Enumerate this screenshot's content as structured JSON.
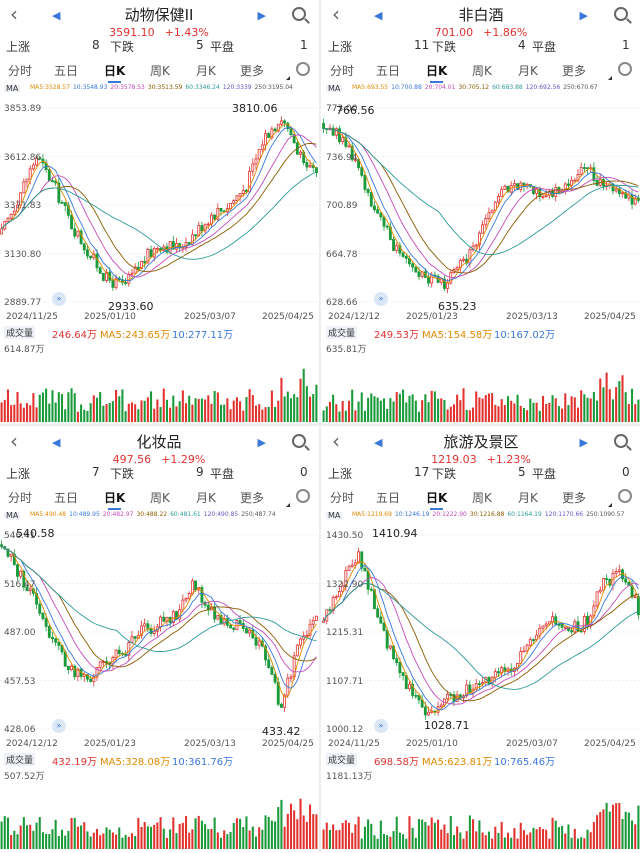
{
  "colors": {
    "up": "#e2332f",
    "down": "#1a9a3a",
    "accent": "#3a78d8"
  },
  "common": {
    "tabs": [
      "分时",
      "五日",
      "日K",
      "周K",
      "月K",
      "更多"
    ],
    "breadth_labels": {
      "up": "上涨",
      "down": "下跌",
      "flat": "平盘"
    },
    "ma_tag": "MA",
    "vol_tag": "成交量",
    "icons": [
      "back-icon",
      "prev-icon",
      "next-icon",
      "search-icon",
      "settings-icon",
      "drag-icon"
    ]
  },
  "panels": [
    {
      "title": "动物保健II",
      "price": "3591.10",
      "change": "+1.43%",
      "up": "8",
      "down": "5",
      "flat": "1",
      "ma": [
        "MA5:3528.57",
        "10:3548.93",
        "20:3578.53",
        "30:3513.59",
        "60:3346.24",
        "120:3339",
        "250:3195.04"
      ],
      "price_labels": [
        "3853.89",
        "3612.86",
        "3371.83",
        "3130.80",
        "2889.77"
      ],
      "high": "3810.06",
      "low": "2933.60",
      "dates": [
        "2024/11/25",
        "2025/01/10",
        "2025/03/07",
        "2025/04/25"
      ],
      "vol": "246.64万",
      "vol_ma5": "MA5:243.65万",
      "vol_ma10": "10:277.11万",
      "vol_max": "614.87万"
    },
    {
      "title": "非白酒",
      "price": "701.00",
      "change": "+1.86%",
      "up": "11",
      "down": "4",
      "flat": "1",
      "ma": [
        "MA5:693.55",
        "10:700.88",
        "20:704.01",
        "30:705.12",
        "60:683.88",
        "120:692.56",
        "250:670.67"
      ],
      "price_labels": [
        "773.00",
        "736.94",
        "700.89",
        "664.78",
        "628.66"
      ],
      "high": "766.56",
      "low": "635.23",
      "dates": [
        "2024/12/12",
        "2025/01/23",
        "2025/03/13",
        "2025/04/25"
      ],
      "vol": "249.53万",
      "vol_ma5": "MA5:154.58万",
      "vol_ma10": "10:167.02万",
      "vol_max": "635.81万"
    },
    {
      "title": "化妆品",
      "price": "497.56",
      "change": "+1.29%",
      "up": "7",
      "down": "9",
      "flat": "0",
      "ma": [
        "MA5:490.48",
        "10:489.95",
        "20:482.97",
        "30:488.22",
        "60:481.61",
        "120:490.85",
        "250:487.74"
      ],
      "price_labels": [
        "546.41",
        "516.47",
        "487.00",
        "457.53",
        "428.06"
      ],
      "high": "540.58",
      "low": "433.42",
      "dates": [
        "2024/12/12",
        "2025/01/23",
        "2025/03/13",
        "2025/04/25"
      ],
      "vol": "432.19万",
      "vol_ma5": "MA5:328.08万",
      "vol_ma10": "10:361.76万",
      "vol_max": "507.52万"
    },
    {
      "title": "旅游及景区",
      "price": "1219.03",
      "change": "+1.23%",
      "up": "17",
      "down": "5",
      "flat": "0",
      "ma": [
        "MA5:1219.69",
        "10:1246.19",
        "20:1222.90",
        "30:1216.88",
        "60:1164.19",
        "120:1170.66",
        "250:1090.57"
      ],
      "price_labels": [
        "1430.50",
        "1322.90",
        "1215.31",
        "1107.71",
        "1000.12"
      ],
      "high": "1410.94",
      "low": "1028.71",
      "dates": [
        "2024/11/25",
        "2025/01/10",
        "2025/03/07",
        "2025/04/25"
      ],
      "vol": "698.58万",
      "vol_ma5": "MA5:623.81万",
      "vol_ma10": "10:765.46万",
      "vol_max": "1181.13万"
    }
  ]
}
